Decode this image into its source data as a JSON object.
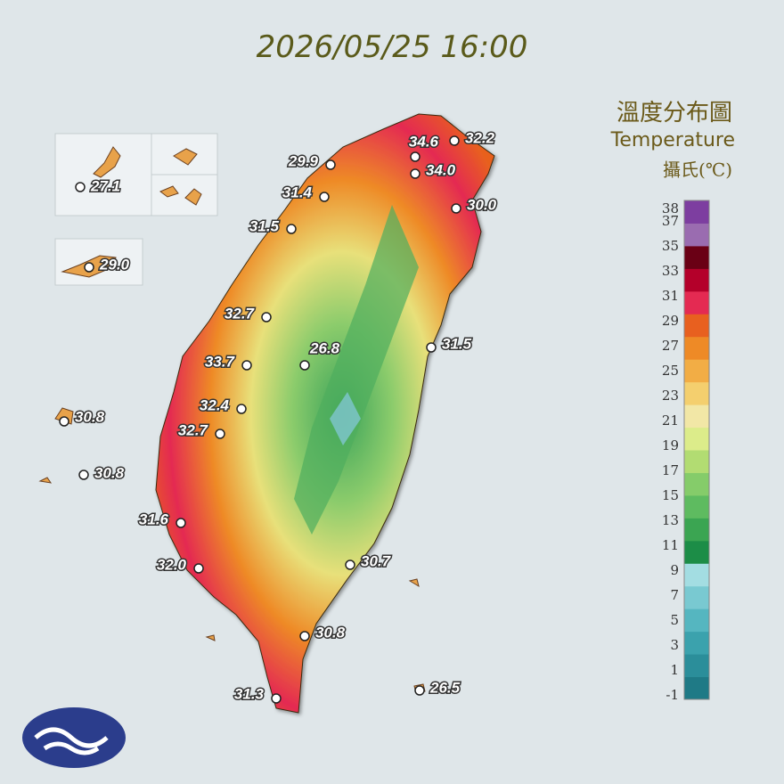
{
  "title": "2026/05/25 16:00",
  "legend": {
    "title": "溫度分布圖",
    "subtitle": "Temperature",
    "unit": "攝氏(℃)",
    "lim": [
      -1,
      39
    ],
    "ticks": [
      38,
      37,
      35,
      33,
      31,
      29,
      27,
      25,
      23,
      21,
      19,
      17,
      15,
      13,
      11,
      9,
      7,
      5,
      3,
      1,
      -1
    ],
    "colors": [
      "#1f7a86",
      "#2b8e9a",
      "#3ba2ad",
      "#55b6c0",
      "#79c9d1",
      "#a3dde2",
      "#1c8d47",
      "#3ba552",
      "#5ebb60",
      "#85cc6a",
      "#b2dc72",
      "#dcec8a",
      "#f2e7a6",
      "#f4cf6e",
      "#f2ad45",
      "#ee8a26",
      "#e8601f",
      "#e42a52",
      "#b4002a",
      "#6a0015",
      "#9a6cb0",
      "#7d3ea0"
    ]
  },
  "stations": [
    "27.1",
    "29.0",
    "30.8",
    "30.8",
    "29.9",
    "31.4",
    "31.5",
    "34.6",
    "32.2",
    "34.0",
    "30.0",
    "32.7",
    "26.8",
    "31.5",
    "33.7",
    "32.4",
    "32.7",
    "31.6",
    "32.0",
    "30.7",
    "30.8",
    "31.3",
    "26.5"
  ]
}
